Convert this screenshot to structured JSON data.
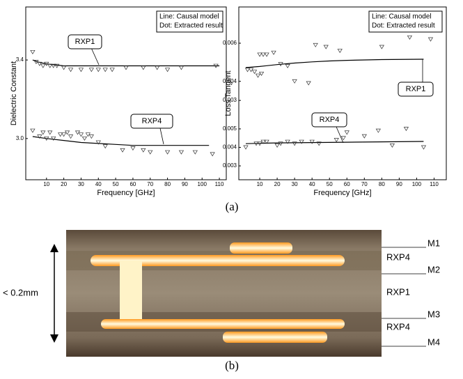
{
  "chart_data": [
    {
      "type": "line",
      "ylabel": "Dielectric Constant",
      "xlabel": "Frequency [GHz]",
      "legend_lines": [
        "Line: Causal model",
        "Dot: Extracted result"
      ],
      "xlim": [
        -2,
        114
      ],
      "xticks": [
        10,
        20,
        30,
        40,
        50,
        60,
        70,
        80,
        90,
        100,
        110
      ],
      "ylim": [
        2.79,
        3.67
      ],
      "yticks": [
        {
          "value": 3,
          "label": "3.0"
        },
        3.4
      ],
      "series": [
        {
          "name": "RXP1",
          "axis": "y",
          "color": "#000",
          "model_x": [
            2,
            5,
            10,
            15,
            20,
            30,
            40,
            60,
            80,
            100,
            110
          ],
          "model_y": [
            3.4,
            3.39,
            3.38,
            3.375,
            3.37,
            3.37,
            3.37,
            3.37,
            3.37,
            3.37,
            3.37
          ],
          "extracted_x": [
            2,
            4,
            6,
            8,
            10,
            12,
            14,
            16,
            20,
            24,
            30,
            36,
            40,
            44,
            48,
            56,
            66,
            74,
            80,
            88,
            108
          ],
          "extracted_y": [
            3.44,
            3.39,
            3.38,
            3.37,
            3.38,
            3.37,
            3.37,
            3.37,
            3.36,
            3.35,
            3.35,
            3.35,
            3.35,
            3.35,
            3.35,
            3.36,
            3.36,
            3.36,
            3.35,
            3.36,
            3.37
          ]
        },
        {
          "name": "RXP4",
          "axis": "y",
          "color": "#000",
          "model_x": [
            2,
            10,
            20,
            30,
            40,
            50,
            60,
            80,
            104
          ],
          "model_y": [
            3.01,
            3.0,
            2.99,
            2.98,
            2.975,
            2.97,
            2.965,
            2.965,
            2.965
          ],
          "extracted_x": [
            2,
            6,
            8,
            10,
            12,
            14,
            18,
            20,
            22,
            24,
            28,
            30,
            32,
            34,
            36,
            40,
            44,
            54,
            60,
            66,
            70,
            80,
            88,
            96,
            106
          ],
          "extracted_y": [
            3.04,
            3.01,
            3.03,
            3.0,
            3.03,
            3.0,
            3.02,
            3.02,
            3.03,
            3.01,
            3.03,
            3.02,
            3.0,
            3.02,
            3.01,
            2.98,
            2.96,
            2.94,
            2.95,
            2.94,
            2.93,
            2.93,
            2.93,
            2.93,
            2.92
          ]
        }
      ]
    },
    {
      "type": "line",
      "ylabel": "Loss Tangent",
      "xlabel": "Frequency [GHz]",
      "legend_lines": [
        "Line: Causal model",
        "Dot: Extracted result"
      ],
      "xlim": [
        -2,
        117
      ],
      "xticks": [
        10,
        20,
        30,
        40,
        50,
        60,
        70,
        80,
        90,
        100,
        110
      ],
      "ylim": [
        0.00242,
        0.0079
      ],
      "yticks": [
        0.006,
        0.004,
        0.003
      ],
      "y2lim": [
        0.00225,
        0.00594
      ],
      "y2ticks": [
        0.005,
        0.004,
        0.003
      ],
      "series": [
        {
          "name": "RXP1",
          "axis": "y",
          "color": "#000",
          "model_x": [
            2,
            10,
            20,
            30,
            40,
            50,
            60,
            80,
            104
          ],
          "model_y": [
            0.00472,
            0.00478,
            0.00488,
            0.00496,
            0.00502,
            0.00507,
            0.0051,
            0.00514,
            0.00516
          ],
          "extracted_x": [
            3,
            5,
            7,
            9,
            11,
            10,
            12,
            14,
            18,
            22,
            26,
            30,
            38,
            42,
            48,
            56,
            80,
            96,
            108
          ],
          "extracted_y": [
            0.0046,
            0.0046,
            0.0045,
            0.0043,
            0.0044,
            0.0054,
            0.0054,
            0.0054,
            0.0055,
            0.0049,
            0.0048,
            0.004,
            0.0039,
            0.0059,
            0.0058,
            0.0056,
            0.0058,
            0.0063,
            0.0062
          ]
        },
        {
          "name": "RXP4",
          "axis": "y2",
          "color": "#000",
          "model_x": [
            2,
            10,
            20,
            30,
            40,
            50,
            60,
            80,
            104
          ],
          "model_y": [
            0.0042,
            0.00422,
            0.00424,
            0.00425,
            0.00426,
            0.00427,
            0.00428,
            0.0043,
            0.00432
          ],
          "extracted_x": [
            2,
            8,
            10,
            12,
            14,
            20,
            22,
            26,
            30,
            34,
            40,
            44,
            54,
            58,
            60,
            70,
            78,
            86,
            94,
            104
          ],
          "extracted_y": [
            0.004,
            0.0042,
            0.0042,
            0.0043,
            0.0043,
            0.0041,
            0.0042,
            0.0043,
            0.0042,
            0.0043,
            0.0043,
            0.0042,
            0.0044,
            0.0045,
            0.0048,
            0.0046,
            0.0049,
            0.0041,
            0.005,
            0.004
          ]
        }
      ]
    }
  ],
  "figure": {
    "panel_a_label": "(a)",
    "panel_b_label": "(b)",
    "scale_label": "< 0.2mm",
    "layer_labels": [
      "M1",
      "RXP4",
      "M2",
      "RXP1",
      "M3",
      "RXP4",
      "M4"
    ]
  }
}
